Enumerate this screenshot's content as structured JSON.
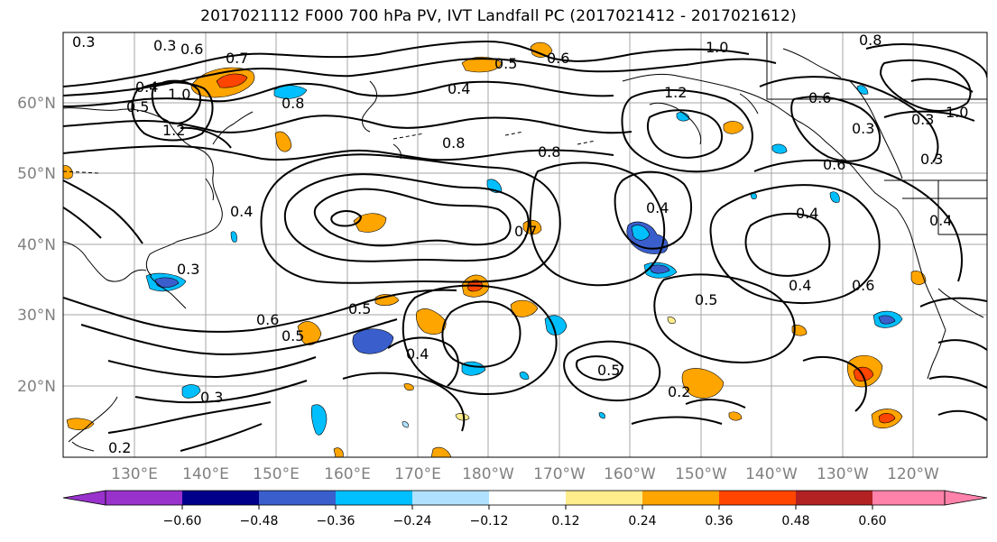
{
  "title": "2017021112 F000 700 hPa PV, IVT Landfall PC (2017021412 - 2017021612)",
  "map": {
    "lat_labels": [
      "60°N",
      "50°N",
      "40°N",
      "30°N",
      "20°N"
    ],
    "lon_labels": [
      "130°E",
      "140°E",
      "150°E",
      "160°E",
      "170°E",
      "180°W",
      "170°W",
      "160°W",
      "150°W",
      "140°W",
      "130°W",
      "120°W"
    ],
    "contour_labels": [
      "0.3",
      "0.4",
      "0.5",
      "0.6",
      "0.7",
      "0.8",
      "1.0",
      "1.2",
      "0.6",
      "0.5",
      "0.4",
      "0.3",
      "0.8",
      "1.0",
      "0.6",
      "0.4",
      "0.3",
      "0.8",
      "0.4",
      "0.5",
      "0.6",
      "0.4",
      "0.7",
      "0.4",
      "0.5",
      "0.4",
      "0.6",
      "0.5",
      "0.3",
      "0.2",
      "1.2",
      "0.8",
      "1.0",
      "0.5",
      "0.6",
      "0.3",
      "0.4",
      "0.3",
      "0.2",
      "0.3"
    ]
  },
  "colorbar": {
    "ticks": [
      "−0.60",
      "−0.48",
      "−0.36",
      "−0.24",
      "−0.12",
      "0.12",
      "0.24",
      "0.36",
      "0.48",
      "0.60"
    ],
    "colors": [
      "#9932cc",
      "#00008b",
      "#3a5fcd",
      "#00bfff",
      "#b0e2ff",
      "#ffffff",
      "#ffec8b",
      "#ffa500",
      "#ff4500",
      "#b22222",
      "#ff82ab"
    ]
  }
}
